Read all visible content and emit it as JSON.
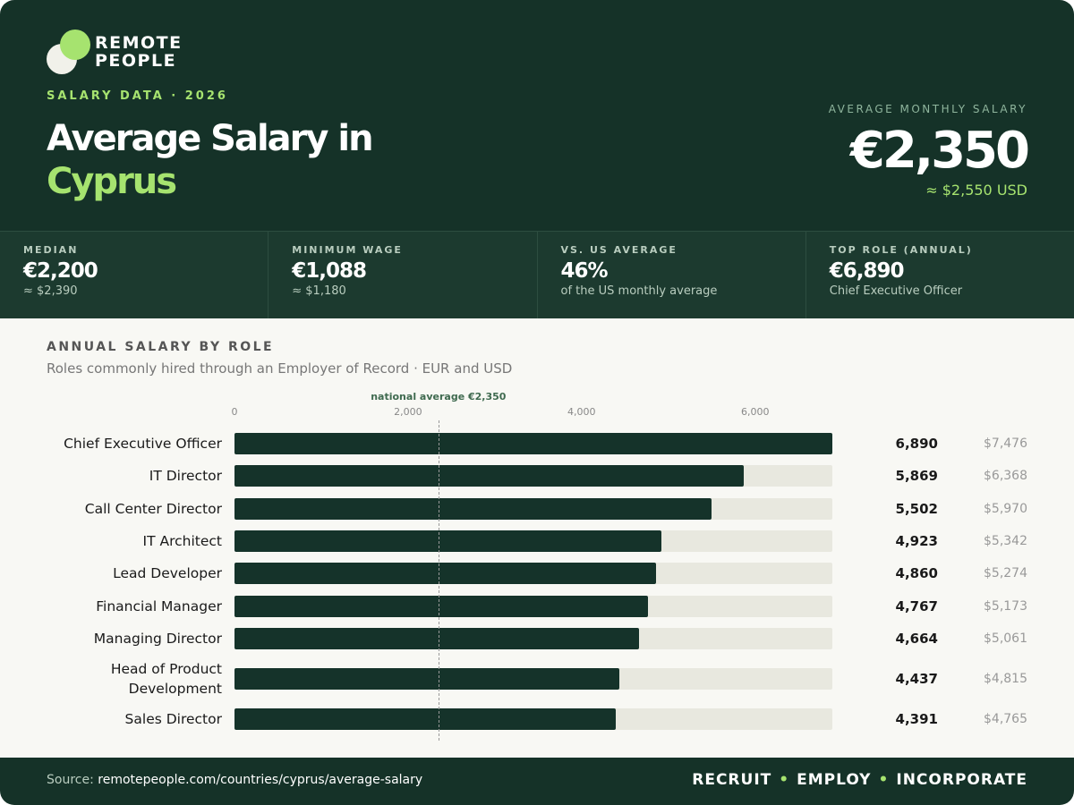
{
  "brand": {
    "line1": "REMOTE",
    "line2": "PEOPLE"
  },
  "header": {
    "eyebrow": "SALARY DATA · 2026",
    "title_line1": "Average Salary in",
    "title_line2": "Cyprus",
    "kpi_label": "AVERAGE MONTHLY SALARY",
    "kpi_value": "€2,350",
    "kpi_sub": "≈ $2,550 USD"
  },
  "stats": [
    {
      "label": "MEDIAN",
      "value": "€2,200",
      "sub": "≈ $2,390"
    },
    {
      "label": "MINIMUM WAGE",
      "value": "€1,088",
      "sub": "≈ $1,180"
    },
    {
      "label": "VS. US AVERAGE",
      "value": "46%",
      "sub": "of the US monthly average"
    },
    {
      "label": "TOP ROLE (ANNUAL)",
      "value": "€6,890",
      "sub": "Chief Executive Officer"
    }
  ],
  "chart_data": {
    "type": "bar",
    "orientation": "horizontal",
    "title": "ANNUAL SALARY BY ROLE",
    "subtitle": "Roles commonly hired through an Employer of Record · EUR and USD",
    "categories": [
      "Chief Executive Officer",
      "IT Director",
      "Call Center Director",
      "IT Architect",
      "Lead Developer",
      "Financial Manager",
      "Managing Director",
      "Head of Product Development",
      "Sales Director"
    ],
    "values": [
      6890,
      5869,
      5502,
      4923,
      4860,
      4767,
      4664,
      4437,
      4391
    ],
    "value_labels": [
      "6,890",
      "5,869",
      "5,502",
      "4,923",
      "4,860",
      "4,767",
      "4,664",
      "4,437",
      "4,391"
    ],
    "usd_labels": [
      "$7,476",
      "$6,368",
      "$5,970",
      "$5,342",
      "$5,274",
      "$5,173",
      "$5,061",
      "$4,815",
      "$4,765"
    ],
    "color": "#15332a",
    "track_color": "#e8e8df",
    "xlim": [
      0,
      6890
    ],
    "xticks": [
      0,
      {
        "value": 2000,
        "label": "2,000"
      },
      {
        "value": 4000,
        "label": "4,000"
      },
      {
        "value": 6000,
        "label": "6,000"
      }
    ],
    "reference_line": {
      "value": 2350,
      "label": "national average €2,350"
    }
  },
  "footer": {
    "source_prefix": "Source:",
    "source_link": "remotepeople.com/countries/cyprus/average-salary",
    "tagline": [
      "RECRUIT",
      "EMPLOY",
      "INCORPORATE"
    ]
  }
}
